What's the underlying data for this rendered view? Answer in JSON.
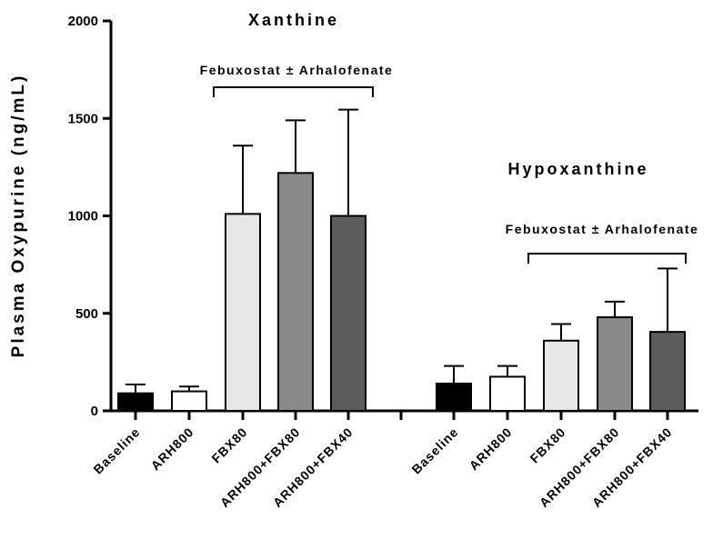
{
  "chart_data": {
    "type": "bar",
    "ylabel": "Plasma Oxypurine (ng/mL)",
    "ylim": [
      0,
      2000
    ],
    "yticks": [
      0,
      500,
      1000,
      1500,
      2000
    ],
    "error_bars": "one-sided upward",
    "groups": [
      {
        "title": "Xanthine",
        "bracket_label": "Febuxostat ± Arhalofenate",
        "categories": [
          "Baseline",
          "ARH800",
          "FBX80",
          "ARH800+FBX80",
          "ARH800+FBX40"
        ],
        "values": [
          90,
          100,
          1010,
          1220,
          1000
        ],
        "errors": [
          45,
          25,
          350,
          270,
          545
        ]
      },
      {
        "title": "Hypoxanthine",
        "bracket_label": "Febuxostat ± Arhalofenate",
        "categories": [
          "Baseline",
          "ARH800",
          "FBX80",
          "ARH800+FBX80",
          "ARH800+FBX40"
        ],
        "values": [
          140,
          175,
          360,
          480,
          405
        ],
        "errors": [
          90,
          55,
          85,
          80,
          325
        ]
      }
    ],
    "bar_colors": [
      "#000000",
      "#ffffff",
      "#e6e6e6",
      "#8a8a8a",
      "#5c5c5c"
    ]
  }
}
